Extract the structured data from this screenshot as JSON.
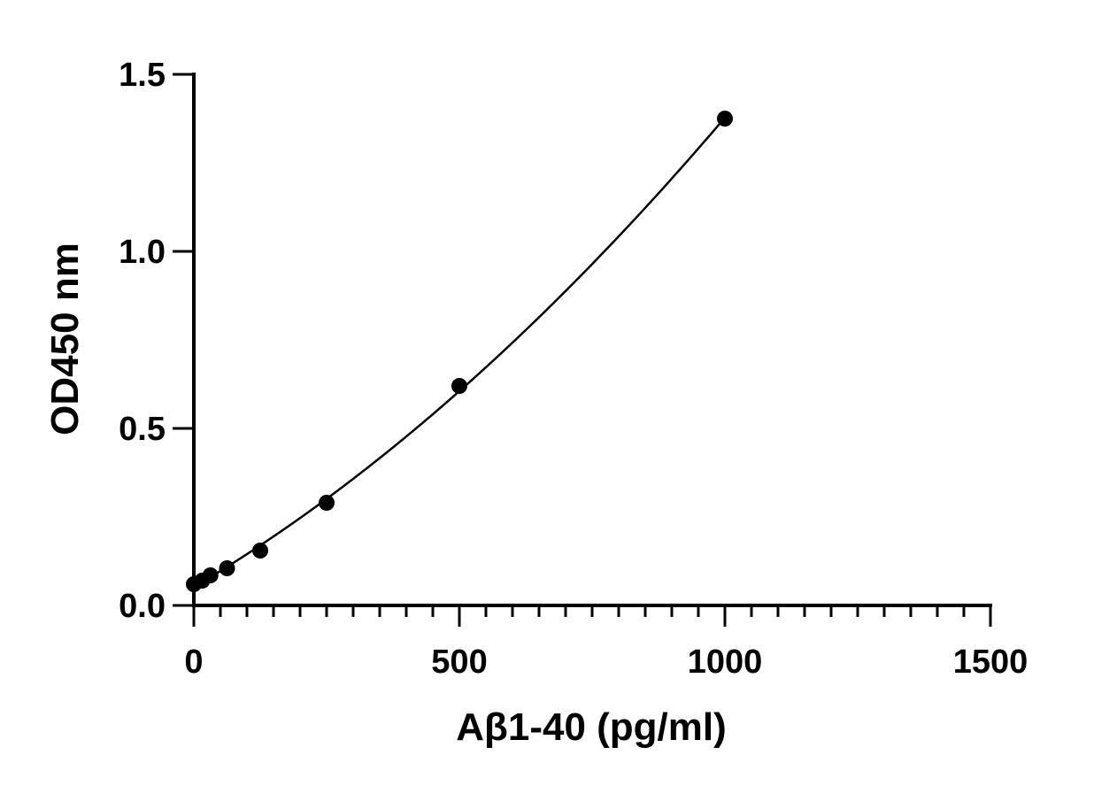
{
  "chart_data": {
    "type": "scatter",
    "title": "",
    "xlabel": "Aβ1-40 (pg/ml)",
    "ylabel": "OD450 nm",
    "xlim": [
      0,
      1500
    ],
    "ylim": [
      0,
      1.5
    ],
    "x_ticks": [
      0,
      500,
      1000,
      1500
    ],
    "x_tick_labels": [
      "0",
      "500",
      "1000",
      "1500"
    ],
    "x_minor_step": 50,
    "y_ticks": [
      0,
      0.5,
      1.0,
      1.5
    ],
    "y_tick_labels": [
      "0.0",
      "0.5",
      "1.0",
      "1.5"
    ],
    "grid": false,
    "series": [
      {
        "points": [
          {
            "x": 0,
            "y": 0.06
          },
          {
            "x": 15.6,
            "y": 0.07
          },
          {
            "x": 31.25,
            "y": 0.085
          },
          {
            "x": 62.5,
            "y": 0.105
          },
          {
            "x": 125,
            "y": 0.155
          },
          {
            "x": 250,
            "y": 0.29
          },
          {
            "x": 500,
            "y": 0.62
          },
          {
            "x": 1000,
            "y": 1.375
          }
        ],
        "fit": "4PL curve",
        "color": "#000000"
      }
    ]
  }
}
